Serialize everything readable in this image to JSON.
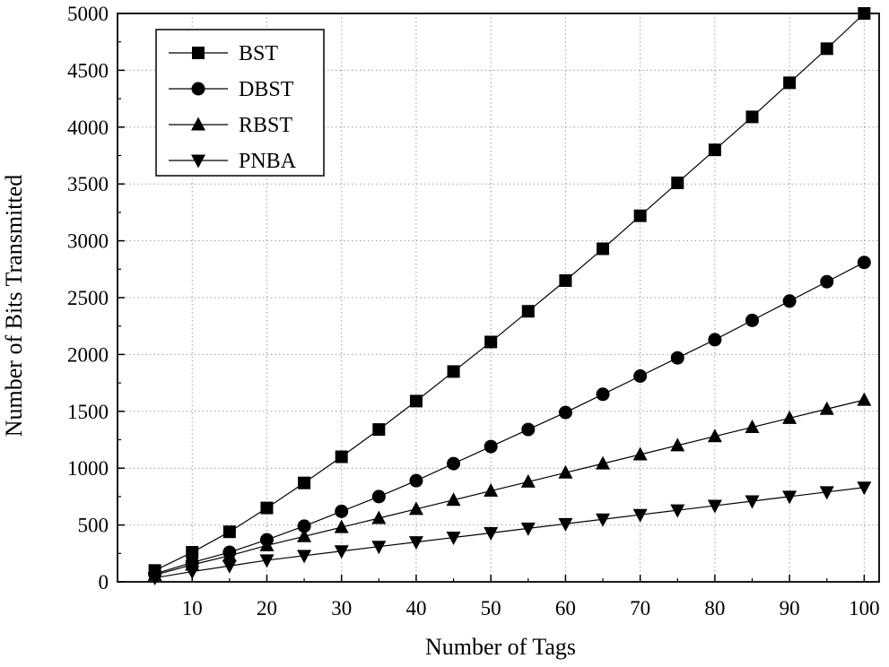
{
  "chart_data": {
    "type": "line",
    "xlabel": "Number of Tags",
    "ylabel": "Number of Bits Transmitted",
    "xlim": [
      0,
      102
    ],
    "ylim": [
      0,
      5000
    ],
    "xticks": [
      10,
      20,
      30,
      40,
      50,
      60,
      70,
      80,
      90,
      100
    ],
    "yticks": [
      0,
      500,
      1000,
      1500,
      2000,
      2500,
      3000,
      3500,
      4000,
      4500,
      5000
    ],
    "grid": true,
    "legend_position": "top-left",
    "x": [
      5,
      10,
      15,
      20,
      25,
      30,
      35,
      40,
      45,
      50,
      55,
      60,
      65,
      70,
      75,
      80,
      85,
      90,
      95,
      100
    ],
    "series": [
      {
        "name": "BST",
        "marker": "square",
        "values": [
          100,
          260,
          440,
          650,
          870,
          1100,
          1340,
          1590,
          1850,
          2110,
          2380,
          2650,
          2930,
          3220,
          3510,
          3800,
          4090,
          4390,
          4690,
          5000
        ]
      },
      {
        "name": "DBST",
        "marker": "circle",
        "values": [
          70,
          170,
          260,
          370,
          490,
          620,
          750,
          890,
          1040,
          1190,
          1340,
          1490,
          1650,
          1810,
          1970,
          2130,
          2300,
          2470,
          2640,
          2810
        ]
      },
      {
        "name": "RBST",
        "marker": "triangle-up",
        "values": [
          60,
          150,
          230,
          320,
          400,
          480,
          560,
          640,
          720,
          800,
          880,
          960,
          1040,
          1120,
          1200,
          1280,
          1360,
          1440,
          1520,
          1600
        ]
      },
      {
        "name": "PNBA",
        "marker": "triangle-down",
        "values": [
          35,
          90,
          140,
          190,
          230,
          270,
          310,
          350,
          390,
          430,
          470,
          510,
          550,
          590,
          630,
          670,
          710,
          750,
          790,
          830
        ]
      }
    ]
  }
}
